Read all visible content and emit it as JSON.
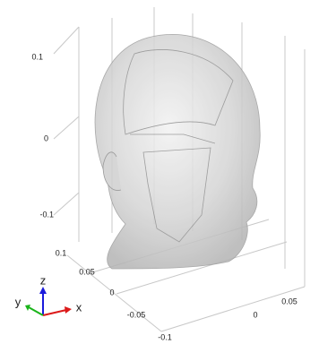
{
  "z_axis": {
    "ticks": [
      "0.1",
      "0",
      "-0.1"
    ]
  },
  "y_axis": {
    "ticks": [
      "0.1",
      "0.05",
      "0",
      "-0.05",
      "-0.1"
    ]
  },
  "x_axis": {
    "ticks": [
      "0",
      "0.05"
    ]
  },
  "triad": {
    "z": "z",
    "y": "y",
    "x": "x"
  }
}
